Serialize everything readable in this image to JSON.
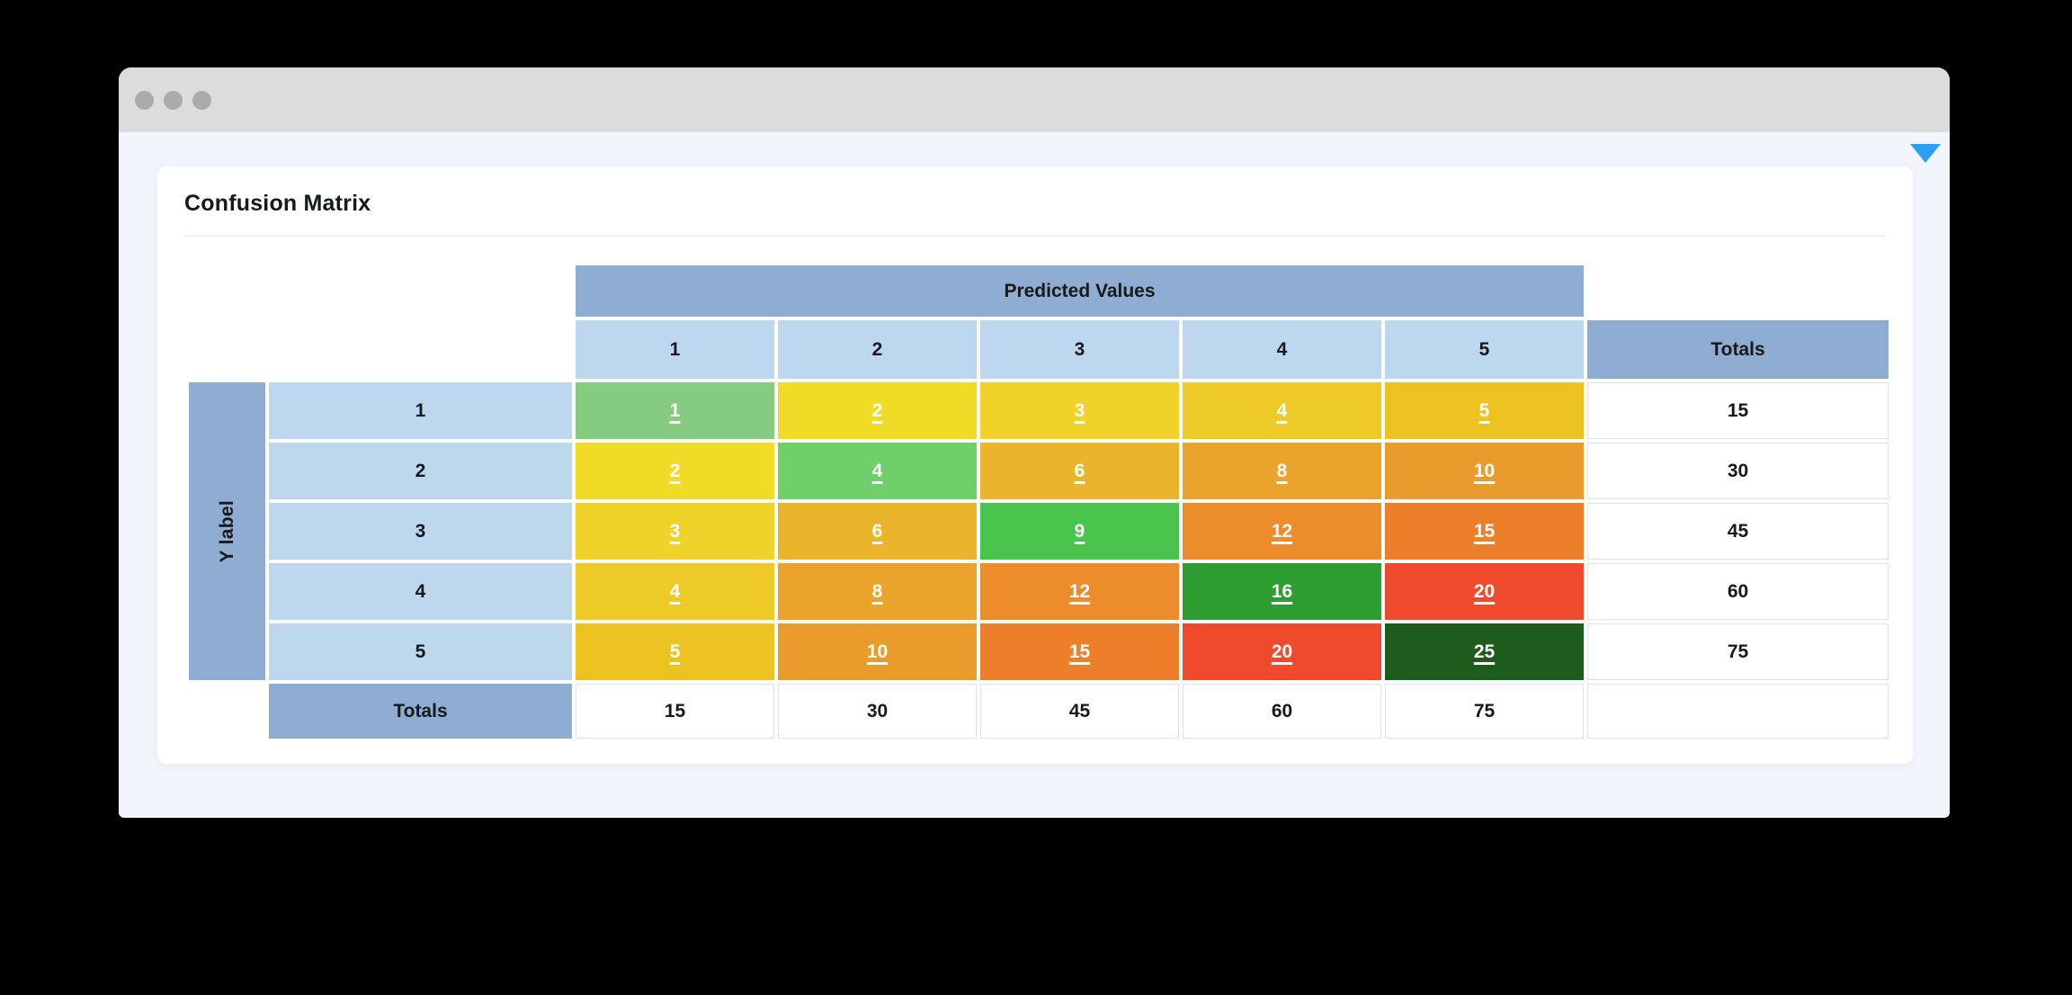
{
  "panel": {
    "title": "Confusion Matrix"
  },
  "colors": {
    "titlebar": "#dcdcdc",
    "window_dot": "#ababab",
    "body_bg": "#f2f6fc",
    "accent_arrow": "#2e9ff2",
    "header_blue": "#8fadd2",
    "light_blue": "#bdd7ef"
  },
  "table": {
    "x_axis_header": "Predicted Values",
    "y_axis_header": "Y label",
    "totals_col_header": "Totals",
    "totals_row_header": "Totals",
    "col_headers": [
      "1",
      "2",
      "3",
      "4",
      "5"
    ],
    "row_headers": [
      "1",
      "2",
      "3",
      "4",
      "5"
    ],
    "rows": [
      {
        "cells": [
          {
            "value": "1",
            "color": "#85cc80"
          },
          {
            "value": "2",
            "color": "#f0dc26"
          },
          {
            "value": "3",
            "color": "#efd32a"
          },
          {
            "value": "4",
            "color": "#eeca28"
          },
          {
            "value": "5",
            "color": "#edc321"
          }
        ],
        "total": "15"
      },
      {
        "cells": [
          {
            "value": "2",
            "color": "#f0dc26"
          },
          {
            "value": "4",
            "color": "#6fcf6a"
          },
          {
            "value": "6",
            "color": "#ebb52b"
          },
          {
            "value": "8",
            "color": "#eaa42c"
          },
          {
            "value": "10",
            "color": "#e99b2c"
          }
        ],
        "total": "30"
      },
      {
        "cells": [
          {
            "value": "3",
            "color": "#efd32a"
          },
          {
            "value": "6",
            "color": "#ebb52b"
          },
          {
            "value": "9",
            "color": "#49c54d"
          },
          {
            "value": "12",
            "color": "#ec8c2b"
          },
          {
            "value": "15",
            "color": "#ed7f2b"
          }
        ],
        "total": "45"
      },
      {
        "cells": [
          {
            "value": "4",
            "color": "#eeca28"
          },
          {
            "value": "8",
            "color": "#eaa42c"
          },
          {
            "value": "12",
            "color": "#ec8c2b"
          },
          {
            "value": "16",
            "color": "#2f9e32"
          },
          {
            "value": "20",
            "color": "#ee4a2b"
          }
        ],
        "total": "60"
      },
      {
        "cells": [
          {
            "value": "5",
            "color": "#edc321"
          },
          {
            "value": "10",
            "color": "#e99b2c"
          },
          {
            "value": "15",
            "color": "#ed7f2b"
          },
          {
            "value": "20",
            "color": "#ee4a2b"
          },
          {
            "value": "25",
            "color": "#1e5c1e"
          }
        ],
        "total": "75"
      }
    ],
    "col_totals": [
      "15",
      "30",
      "45",
      "60",
      "75"
    ]
  }
}
